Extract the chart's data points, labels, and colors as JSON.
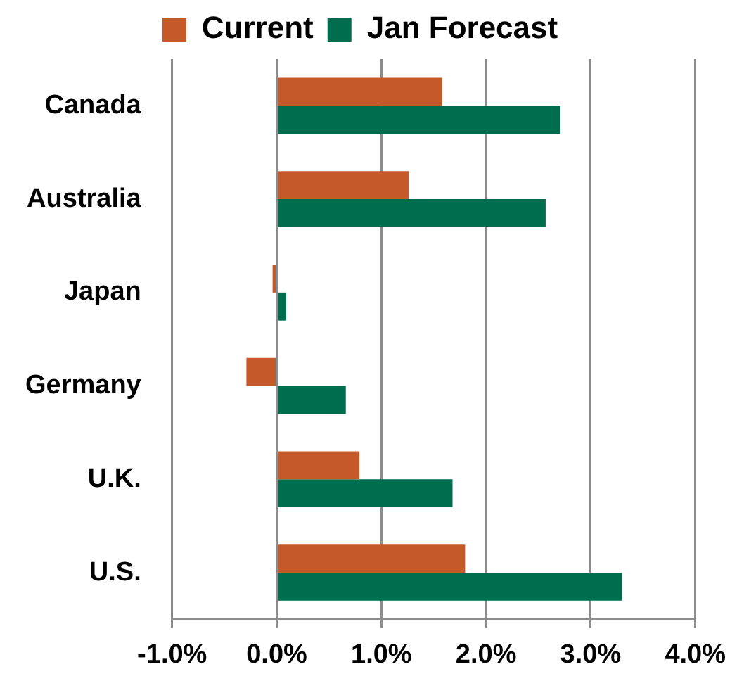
{
  "chart_data": {
    "type": "bar",
    "orientation": "horizontal",
    "categories": [
      "Canada",
      "Australia",
      "Japan",
      "Germany",
      "U.K.",
      "U.S."
    ],
    "series": [
      {
        "name": "Current",
        "color": "#c55a28",
        "values": [
          1.58,
          1.26,
          -0.04,
          -0.29,
          0.79,
          1.8
        ]
      },
      {
        "name": "Jan Forecast",
        "color": "#006e4e",
        "values": [
          2.71,
          2.57,
          0.09,
          0.66,
          1.68,
          3.3
        ]
      }
    ],
    "xlim": [
      -1,
      4
    ],
    "xticks": [
      {
        "value": -1,
        "label": "-1.0%"
      },
      {
        "value": 0,
        "label": "0.0%"
      },
      {
        "value": 1,
        "label": "1.0%"
      },
      {
        "value": 2,
        "label": "2.0%"
      },
      {
        "value": 3,
        "label": "3.0%"
      },
      {
        "value": 4,
        "label": "4.0%"
      }
    ],
    "grid": "x",
    "legend": "top"
  }
}
